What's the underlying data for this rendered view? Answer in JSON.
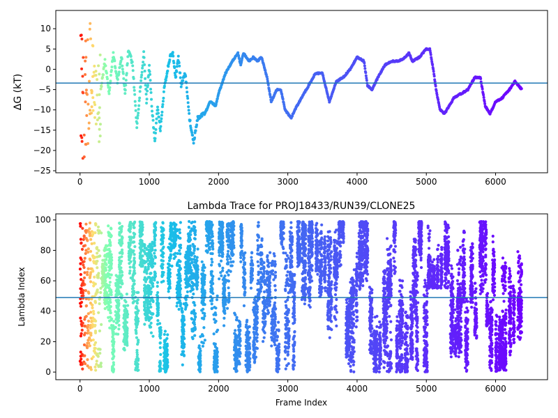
{
  "chart_data": [
    {
      "type": "scatter",
      "title": "",
      "xlabel": "",
      "ylabel": "ΔG (kT)",
      "xlim": [
        -350,
        6750
      ],
      "ylim": [
        -25.5,
        14.5
      ],
      "xticks": [
        0,
        1000,
        2000,
        3000,
        4000,
        5000,
        6000
      ],
      "yticks": [
        -25,
        -20,
        -15,
        -10,
        -5,
        0,
        5,
        10
      ],
      "hline": -3.4,
      "grid": false,
      "colormap": "rainbow",
      "colormap_stops": [
        "#ff0000",
        "#ff8040",
        "#ffe070",
        "#80ffb4",
        "#18c0e8",
        "#3c78f0",
        "#7000ff"
      ],
      "trace_keypoints": [
        [
          300,
          -5
        ],
        [
          360,
          2
        ],
        [
          420,
          -6
        ],
        [
          480,
          4
        ],
        [
          540,
          -3
        ],
        [
          600,
          3
        ],
        [
          650,
          -6
        ],
        [
          700,
          5
        ],
        [
          760,
          1
        ],
        [
          820,
          -14
        ],
        [
          880,
          -3
        ],
        [
          920,
          4
        ],
        [
          960,
          -8
        ],
        [
          1000,
          1
        ],
        [
          1040,
          -10
        ],
        [
          1080,
          -18
        ],
        [
          1120,
          -9
        ],
        [
          1160,
          -15
        ],
        [
          1220,
          -4
        ],
        [
          1300,
          3
        ],
        [
          1340,
          4
        ],
        [
          1380,
          -2
        ],
        [
          1420,
          3
        ],
        [
          1460,
          -4
        ],
        [
          1520,
          -1
        ],
        [
          1580,
          -12
        ],
        [
          1640,
          -18
        ],
        [
          1700,
          -12
        ],
        [
          1800,
          -11
        ],
        [
          1880,
          -8
        ],
        [
          1960,
          -9
        ],
        [
          2000,
          -6
        ],
        [
          2100,
          -1
        ],
        [
          2200,
          2
        ],
        [
          2280,
          4
        ],
        [
          2320,
          1
        ],
        [
          2360,
          4
        ],
        [
          2440,
          2
        ],
        [
          2500,
          3
        ],
        [
          2560,
          2
        ],
        [
          2620,
          3
        ],
        [
          2700,
          -2
        ],
        [
          2760,
          -8
        ],
        [
          2840,
          -5
        ],
        [
          2900,
          -5
        ],
        [
          2960,
          -10
        ],
        [
          3050,
          -12
        ],
        [
          3100,
          -10
        ],
        [
          3200,
          -7
        ],
        [
          3300,
          -4
        ],
        [
          3400,
          -1
        ],
        [
          3500,
          -1
        ],
        [
          3600,
          -8
        ],
        [
          3700,
          -3
        ],
        [
          3800,
          -2
        ],
        [
          3900,
          0
        ],
        [
          4000,
          3
        ],
        [
          4100,
          2
        ],
        [
          4150,
          -4
        ],
        [
          4220,
          -5
        ],
        [
          4300,
          -2
        ],
        [
          4400,
          1
        ],
        [
          4500,
          2
        ],
        [
          4600,
          2
        ],
        [
          4700,
          3
        ],
        [
          4750,
          4
        ],
        [
          4800,
          2
        ],
        [
          4900,
          3
        ],
        [
          4950,
          4
        ],
        [
          5000,
          5
        ],
        [
          5050,
          5
        ],
        [
          5100,
          0
        ],
        [
          5150,
          -6
        ],
        [
          5200,
          -10
        ],
        [
          5260,
          -11
        ],
        [
          5400,
          -7
        ],
        [
          5500,
          -6
        ],
        [
          5600,
          -5
        ],
        [
          5700,
          -2
        ],
        [
          5780,
          -2
        ],
        [
          5850,
          -9
        ],
        [
          5920,
          -11
        ],
        [
          6000,
          -8
        ],
        [
          6100,
          -7
        ],
        [
          6200,
          -5
        ],
        [
          6280,
          -3
        ],
        [
          6380,
          -5
        ]
      ]
    },
    {
      "type": "scatter",
      "title": "Lambda Trace for PROJ18433/RUN39/CLONE25",
      "xlabel": "Frame Index",
      "ylabel": "Lambda Index",
      "xlim": [
        -350,
        6750
      ],
      "ylim": [
        -5,
        104
      ],
      "xticks": [
        0,
        1000,
        2000,
        3000,
        4000,
        5000,
        6000
      ],
      "yticks": [
        0,
        20,
        40,
        60,
        80,
        100
      ],
      "hline": 49,
      "grid": false,
      "colormap": "rainbow",
      "value_range": [
        0,
        99
      ]
    }
  ]
}
